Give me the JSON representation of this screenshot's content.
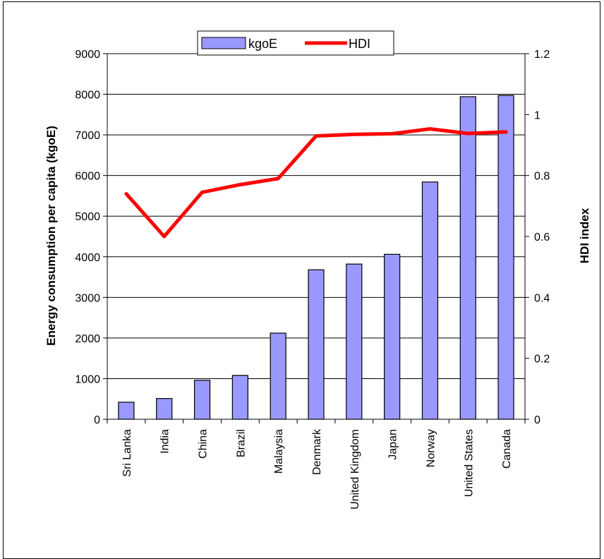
{
  "chart_data": {
    "type": "bar",
    "categories": [
      "Sri Lanka",
      "India",
      "China",
      "Brazil",
      "Malaysia",
      "Denmark",
      "United Kingdom",
      "Japan",
      "Norway",
      "United States",
      "Canada"
    ],
    "series": [
      {
        "name": "kgoE",
        "type": "bar",
        "axis": "left",
        "color": "#9999FF",
        "values": [
          420,
          510,
          960,
          1080,
          2120,
          3680,
          3820,
          4060,
          5840,
          7940,
          7970
        ]
      },
      {
        "name": "HDI",
        "type": "line",
        "axis": "right",
        "color": "#FF0000",
        "values": [
          0.74,
          0.6,
          0.745,
          0.77,
          0.79,
          0.93,
          0.935,
          0.937,
          0.953,
          0.938,
          0.943
        ]
      }
    ],
    "ylabel": "Energy consumption per capita (kgoE)",
    "y2label": "HDI index",
    "ylim": [
      0,
      9000
    ],
    "y2lim": [
      0,
      1.2
    ],
    "yticks": [
      "0",
      "1000",
      "2000",
      "3000",
      "4000",
      "5000",
      "6000",
      "7000",
      "8000",
      "9000"
    ],
    "y2ticks": [
      "0",
      "0.2",
      "0.4",
      "0.6",
      "0.8",
      "1",
      "1.2"
    ],
    "grid": true,
    "legend_position": "top"
  }
}
